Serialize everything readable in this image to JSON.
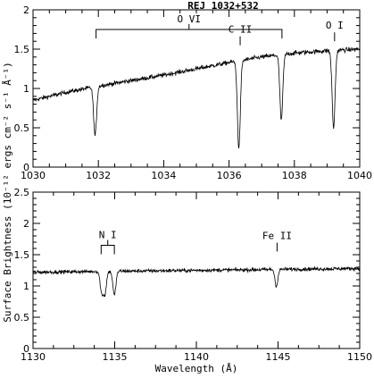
{
  "chart_data": [
    {
      "type": "line",
      "title": "REJ 1032+532",
      "xlim": [
        1030,
        1040
      ],
      "ylim": [
        0,
        2
      ],
      "xticks": [
        1030,
        1032,
        1034,
        1036,
        1038,
        1040
      ],
      "yticks": [
        0,
        0.5,
        1,
        1.5,
        2
      ],
      "ylabel": "Surface Brightness (10⁻¹² ergs cm⁻² s⁻¹ Å⁻¹)",
      "continuum": [
        [
          1030,
          0.85
        ],
        [
          1031,
          0.95
        ],
        [
          1032,
          1.03
        ],
        [
          1033,
          1.1
        ],
        [
          1034,
          1.17
        ],
        [
          1035,
          1.25
        ],
        [
          1036,
          1.33
        ],
        [
          1037,
          1.4
        ],
        [
          1038,
          1.45
        ],
        [
          1039,
          1.48
        ],
        [
          1040,
          1.5
        ]
      ],
      "absorption_lines": [
        {
          "x": 1031.9,
          "min": 0.4
        },
        {
          "x": 1036.3,
          "min": 0.25
        },
        {
          "x": 1037.6,
          "min": 0.6
        },
        {
          "x": 1039.2,
          "min": 0.5
        }
      ],
      "annotations": [
        {
          "text": "O VI",
          "x_start": 1031.93,
          "x_end": 1037.62,
          "y": 1.75
        },
        {
          "text": "C II",
          "x": 1036.34,
          "y": 1.55
        },
        {
          "text": "O I",
          "x": 1039.23,
          "y": 1.6
        }
      ]
    },
    {
      "type": "line",
      "xlim": [
        1130,
        1150
      ],
      "ylim": [
        0,
        2.5
      ],
      "xticks": [
        1130,
        1135,
        1140,
        1145,
        1150
      ],
      "yticks": [
        0,
        0.5,
        1,
        1.5,
        2,
        2.5
      ],
      "xlabel": "Wavelength (Å)",
      "continuum": [
        [
          1130,
          1.22
        ],
        [
          1140,
          1.25
        ],
        [
          1150,
          1.28
        ]
      ],
      "absorption_lines": [
        {
          "x": 1134.2,
          "min": 0.9
        },
        {
          "x": 1134.4,
          "min": 0.88
        },
        {
          "x": 1134.98,
          "min": 0.85
        },
        {
          "x": 1144.9,
          "min": 1.0
        }
      ],
      "annotations": [
        {
          "text": "N I",
          "x_start": 1134.17,
          "x_end": 1134.98,
          "y": 1.65
        },
        {
          "text": "Fe II",
          "x": 1144.94,
          "y": 1.55
        }
      ]
    }
  ]
}
